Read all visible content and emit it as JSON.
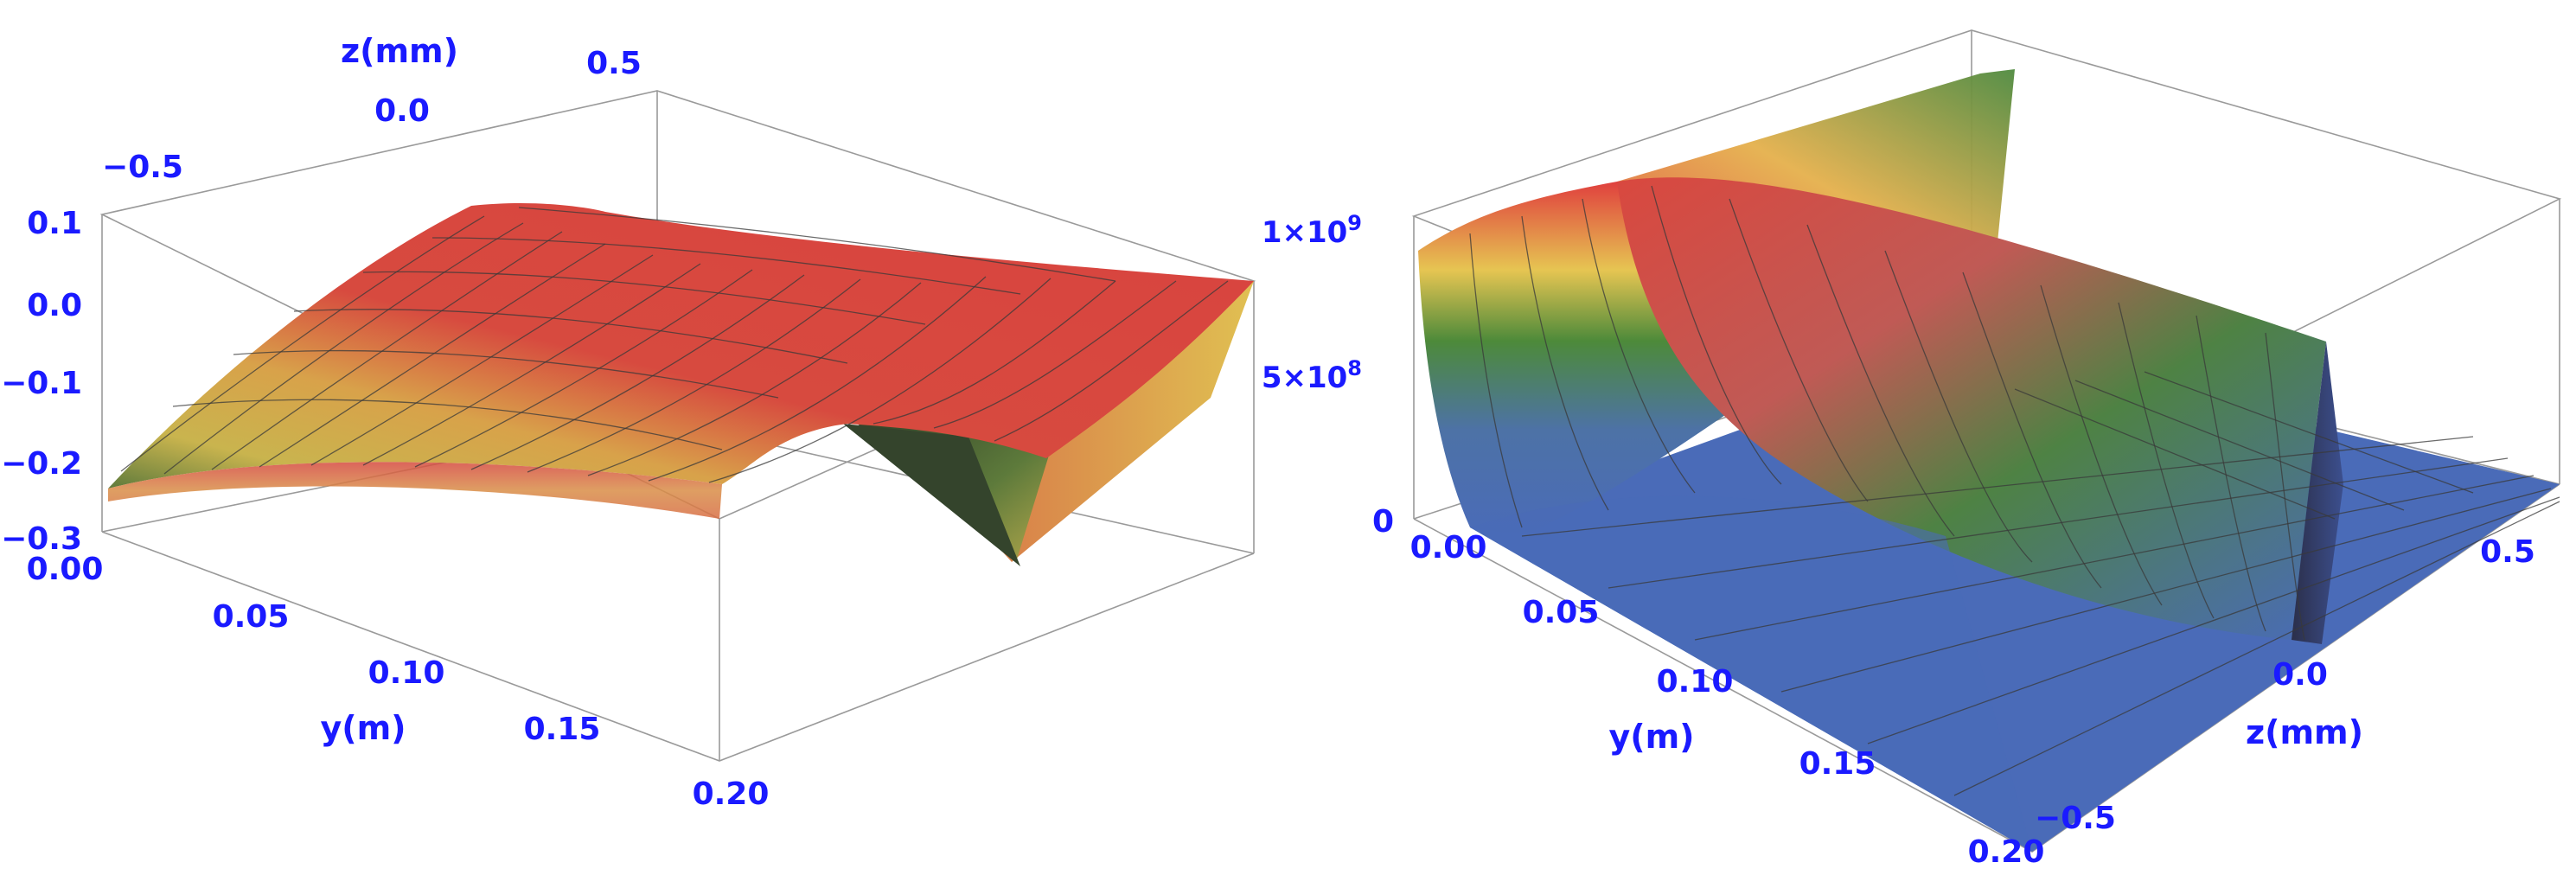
{
  "chart_data": [
    {
      "type": "surface3d",
      "axes": {
        "y": {
          "label": "y(m)",
          "range": [
            0,
            0.2
          ],
          "ticks": [
            "0.00",
            "0.05",
            "0.10",
            "0.15",
            "0.20"
          ]
        },
        "z": {
          "label": "z(mm)",
          "range": [
            -0.7,
            0.7
          ],
          "ticks": [
            "−0.5",
            "0.0",
            "0.5"
          ]
        },
        "vertical": {
          "label": "",
          "range": [
            -0.3,
            0.1
          ],
          "ticks": [
            "0.1",
            "0.0",
            "−0.1",
            "−0.2",
            "−0.3"
          ]
        }
      },
      "surface": {
        "description_values": {
          "max_value": 0.1,
          "min_value": -0.27,
          "trough_at_z": 0.0
        }
      },
      "colors": [
        "#d9413d",
        "#e2b54d",
        "#5f7a3d",
        "#2a3a2a"
      ]
    },
    {
      "type": "surface3d",
      "axes": {
        "y": {
          "label": "y(m)",
          "range": [
            0,
            0.2
          ],
          "ticks": [
            "0.00",
            "0.05",
            "0.10",
            "0.15",
            "0.20"
          ]
        },
        "z": {
          "label": "z(mm)",
          "range": [
            -0.7,
            0.7
          ],
          "ticks": [
            "−0.5",
            "0.0",
            "0.5"
          ]
        },
        "vertical": {
          "label": "",
          "range": [
            0,
            1100000000.0
          ],
          "ticks": [
            "1×10",
            "5×10",
            "0"
          ],
          "tick_exponents": [
            "9",
            "8",
            ""
          ]
        }
      },
      "surface": {
        "description_values": {
          "peak_value": 1000000000.0,
          "peak_at_z": 0.0
        }
      },
      "colors": [
        "#e0413f",
        "#e6d456",
        "#3f7a3a",
        "#4a6bb8"
      ]
    }
  ]
}
